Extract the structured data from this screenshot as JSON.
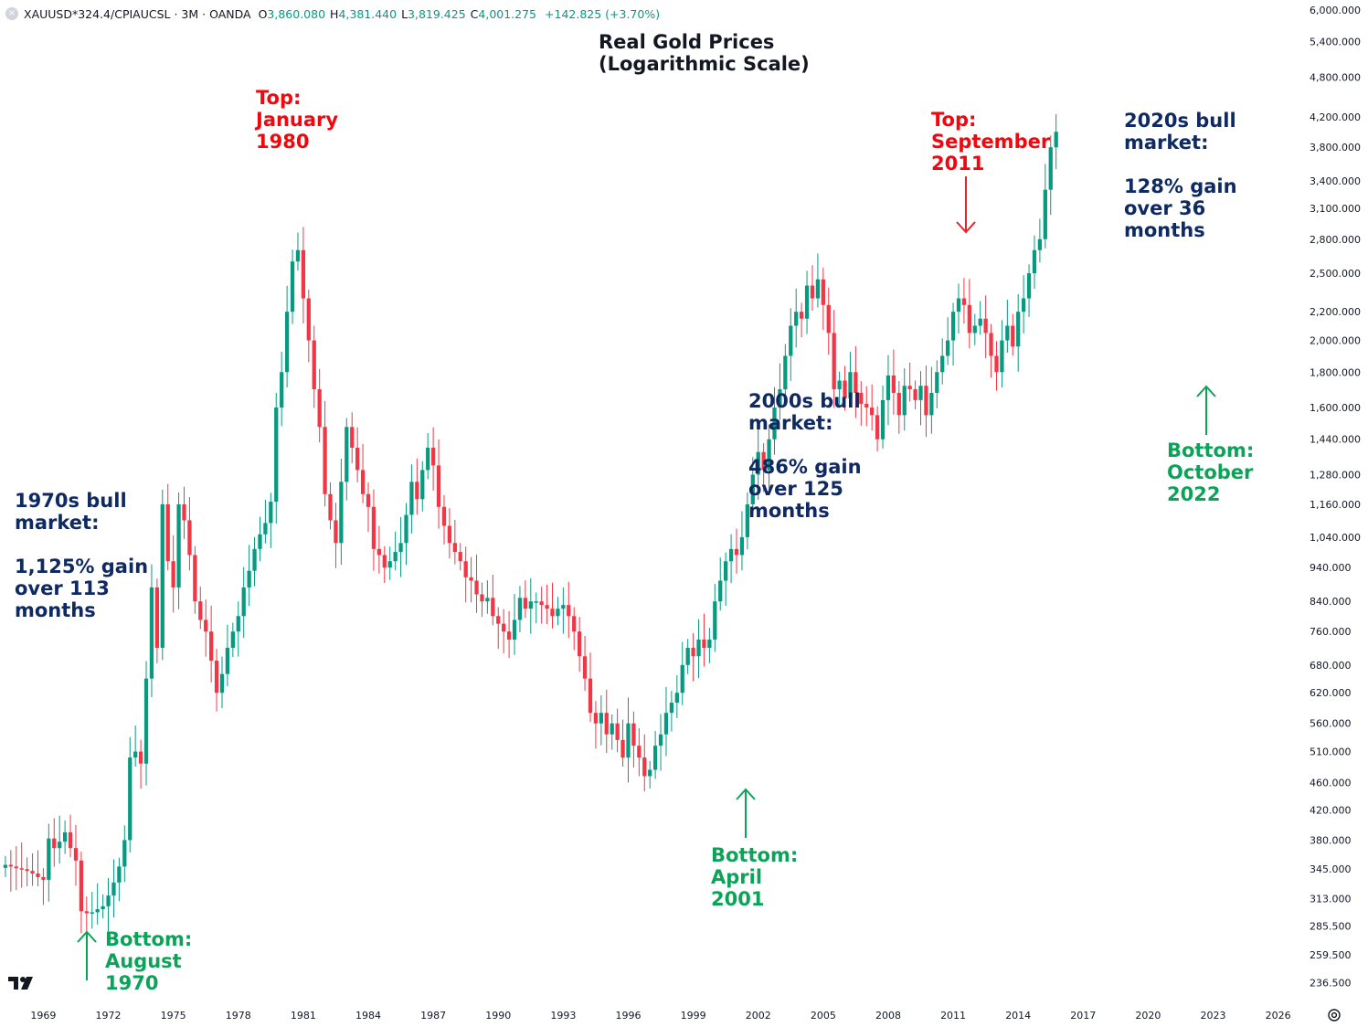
{
  "legend": {
    "symbol": "XAUUSD*324.4/CPIAUCSL · 3M · OANDA",
    "open_label": "O",
    "open_value": "3,860.080",
    "high_label": "H",
    "high_value": "4,381.440",
    "low_label": "L",
    "low_value": "3,819.425",
    "close_label": "C",
    "close_value": "4,001.275",
    "change": "+142.825 (+3.70%)"
  },
  "title": "Real Gold Prices\n(Logarithmic Scale)",
  "annotations": {
    "top_1980": "Top:\nJanuary\n1980",
    "top_2011": "Top:\nSeptember\n2011",
    "bull_2020s": "2020s bull\nmarket:\n\n128% gain\nover 36\nmonths",
    "bull_2000s": "2000s bull\nmarket:\n\n486% gain\nover 125\nmonths",
    "bull_1970s": "1970s bull\nmarket:\n\n1,125% gain\nover 113\nmonths",
    "bottom_1970": "Bottom:\nAugust\n1970",
    "bottom_2001": "Bottom:\nApril\n2001",
    "bottom_2022": "Bottom:\nOctober\n2022"
  },
  "colors": {
    "up": "#089981",
    "down": "#f23645",
    "red_text": "#f2070e",
    "green_text": "#0aa358",
    "navy_text": "#0f2a62",
    "arrow_red": "#e8222b",
    "arrow_green": "#0aa358"
  },
  "icons": {
    "logo": "tradingview-logo-icon",
    "settings": "gear-icon"
  },
  "chart_data": {
    "type": "candlestick",
    "scale": "log",
    "title": "Real Gold Prices (Logarithmic Scale)",
    "y_ticks": [
      "6,000.000",
      "5,400.000",
      "4,800.000",
      "4,200.000",
      "3,800.000",
      "3,400.000",
      "3,100.000",
      "2,800.000",
      "2,500.000",
      "2,200.000",
      "2,000.000",
      "1,800.000",
      "1,600.000",
      "1,440.000",
      "1,280.000",
      "1,160.000",
      "1,040.000",
      "940.000",
      "840.000",
      "760.000",
      "680.000",
      "620.000",
      "560.000",
      "510.000",
      "460.000",
      "420.000",
      "380.000",
      "345.000",
      "313.000",
      "285.500",
      "259.500",
      "236.500"
    ],
    "x_ticks": [
      "1969",
      "1972",
      "1975",
      "1978",
      "1981",
      "1984",
      "1987",
      "1990",
      "1993",
      "1996",
      "1999",
      "2002",
      "2005",
      "2008",
      "2011",
      "2014",
      "2017",
      "2020",
      "2023",
      "2026"
    ],
    "x_tick_years": [
      1969,
      1972,
      1975,
      1978,
      1981,
      1984,
      1987,
      1990,
      1993,
      1996,
      1999,
      2002,
      2005,
      2008,
      2011,
      2014,
      2017,
      2020,
      2023,
      2026
    ],
    "ylim": [
      225,
      6200
    ],
    "xlim": [
      1967.0,
      2026.9
    ],
    "quarters_start": 1967.25,
    "closes": [
      350,
      348,
      346,
      345,
      343,
      340,
      336,
      333,
      382,
      370,
      378,
      390,
      370,
      355,
      300,
      298,
      299,
      302,
      305,
      316,
      330,
      348,
      380,
      500,
      510,
      490,
      650,
      880,
      720,
      1160,
      960,
      880,
      1160,
      1100,
      980,
      840,
      790,
      760,
      690,
      620,
      660,
      720,
      760,
      800,
      880,
      930,
      1000,
      1050,
      1090,
      1170,
      1600,
      1800,
      2200,
      2600,
      2700,
      2300,
      2000,
      1700,
      1500,
      1200,
      1100,
      1020,
      1250,
      1500,
      1400,
      1300,
      1200,
      1150,
      1000,
      980,
      940,
      960,
      990,
      1020,
      1120,
      1250,
      1180,
      1300,
      1400,
      1320,
      1150,
      1080,
      1020,
      990,
      960,
      910,
      900,
      860,
      840,
      850,
      800,
      780,
      760,
      740,
      790,
      850,
      820,
      840,
      840,
      830,
      820,
      800,
      820,
      830,
      800,
      760,
      700,
      650,
      580,
      560,
      580,
      540,
      560,
      530,
      500,
      560,
      520,
      500,
      470,
      480,
      520,
      540,
      580,
      600,
      620,
      680,
      720,
      700,
      740,
      720,
      740,
      840,
      900,
      960,
      1000,
      980,
      1040,
      1160,
      1280,
      1380,
      1300,
      1440,
      1600,
      1700,
      1900,
      2100,
      2200,
      2150,
      2400,
      2300,
      2450,
      2250,
      2050,
      1700,
      1750,
      1650,
      1800,
      1680,
      1620,
      1600,
      1560,
      1440,
      1640,
      1780,
      1680,
      1560,
      1720,
      1700,
      1640,
      1720,
      1560,
      1680,
      1800,
      1900,
      2000,
      2200,
      2300,
      2250,
      2050,
      2100,
      2150,
      2050,
      1900,
      1800,
      2000,
      2100,
      1960,
      2200,
      2300,
      2500,
      2700,
      2800,
      3300,
      3800,
      4001
    ],
    "annotations": [
      {
        "text": "Top: January 1980",
        "year": 1980.0
      },
      {
        "text": "Top: September 2011",
        "year": 2011.7
      },
      {
        "text": "Bottom: August 1970",
        "year": 1970.6
      },
      {
        "text": "Bottom: April 2001",
        "year": 2001.3
      },
      {
        "text": "Bottom: October 2022",
        "year": 2022.8
      }
    ]
  }
}
